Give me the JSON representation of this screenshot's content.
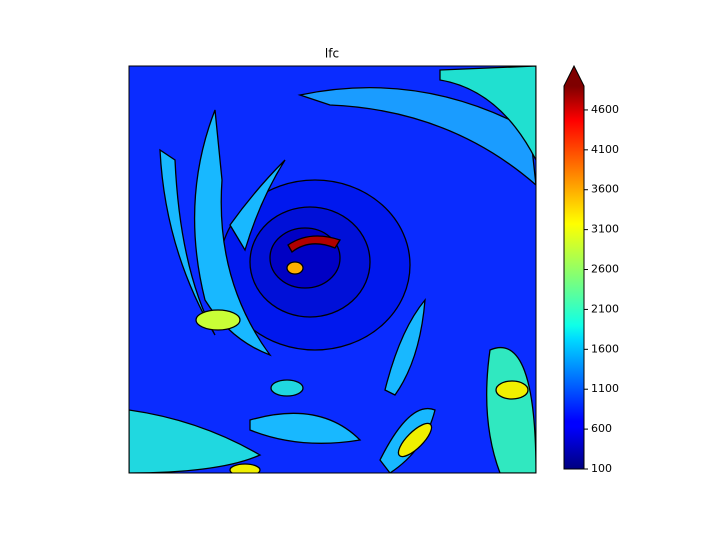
{
  "chart_data": {
    "type": "contourf",
    "title": "lfc",
    "colorbar": {
      "cmap": "jet",
      "lim": [
        100,
        4900
      ],
      "ticks": [
        100,
        600,
        1100,
        1600,
        2100,
        2600,
        3100,
        3600,
        4100,
        4600
      ],
      "extend": "max"
    }
  }
}
